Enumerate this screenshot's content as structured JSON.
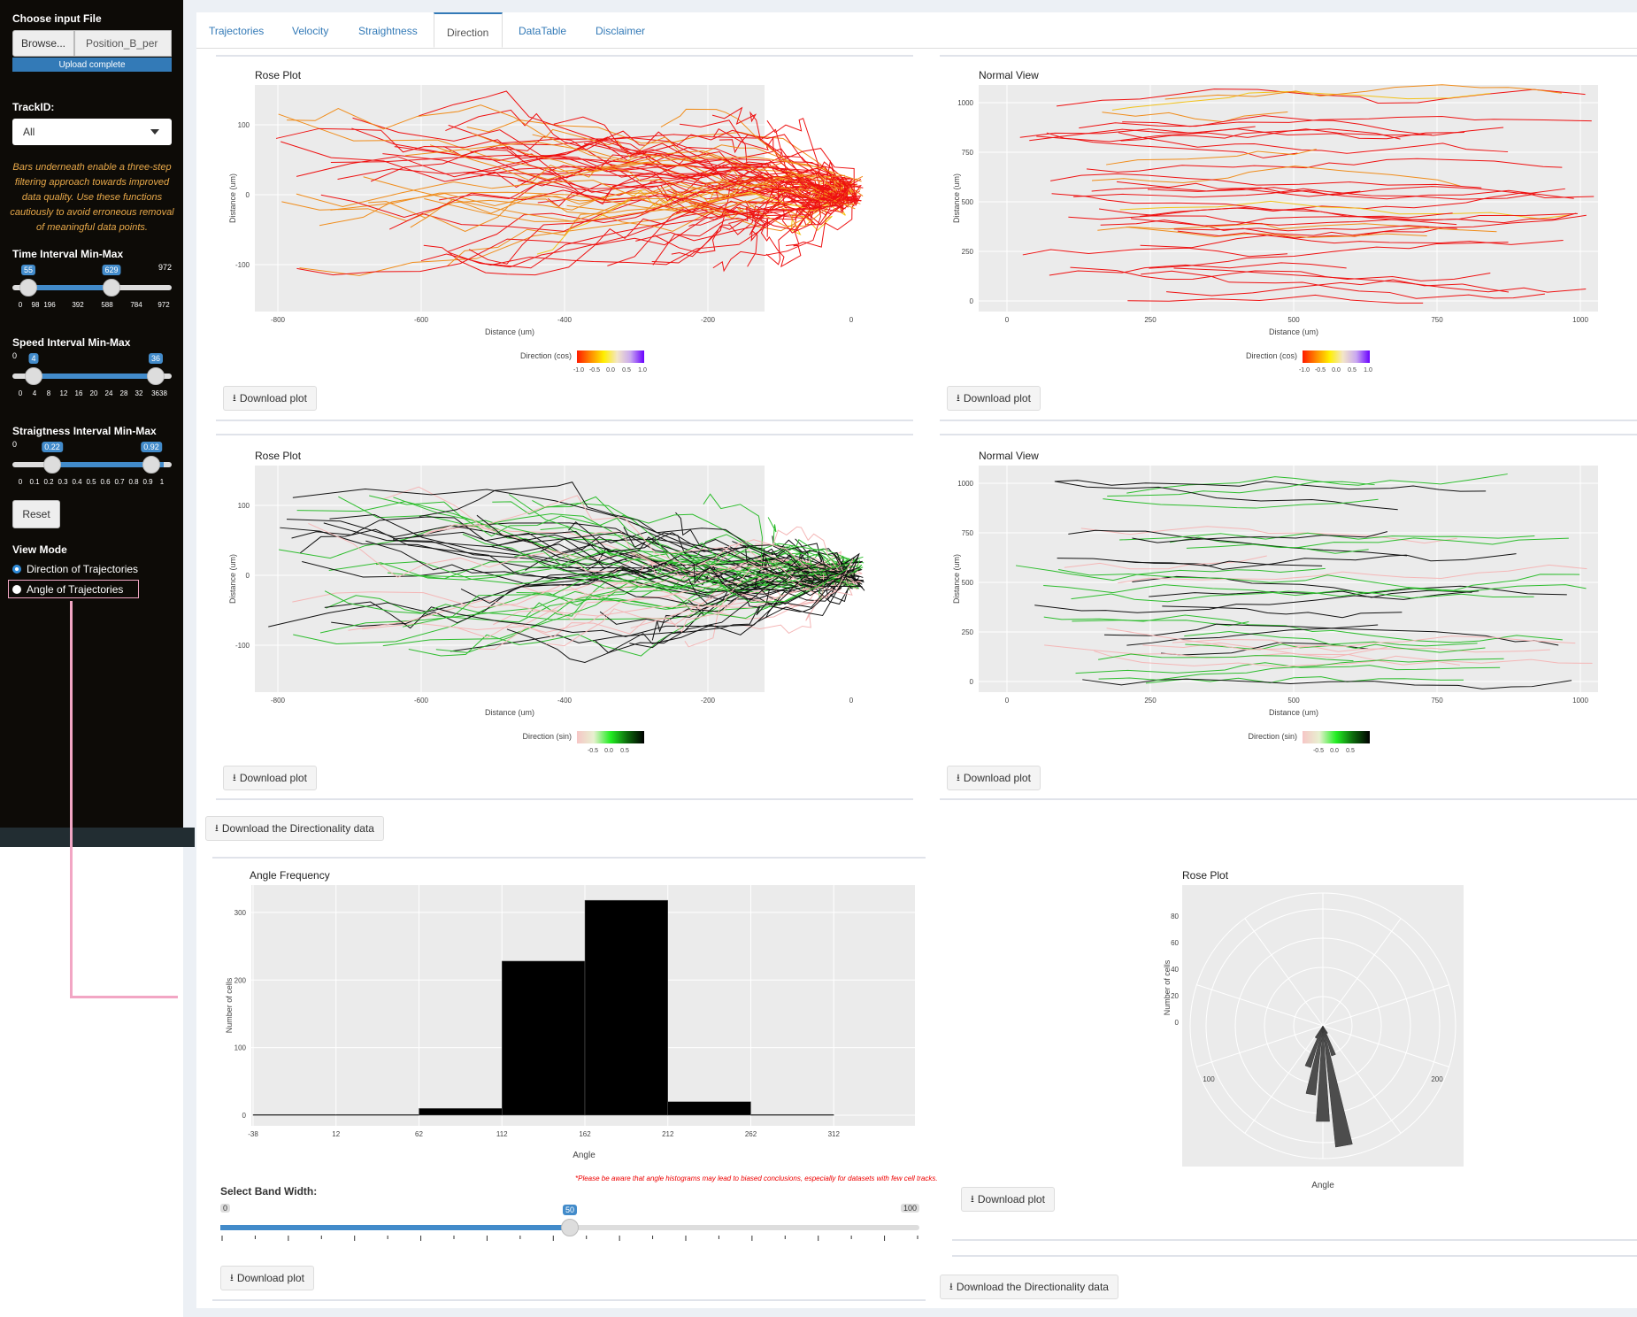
{
  "sidebar": {
    "file_label": "Choose input File",
    "browse_label": "Browse...",
    "file_name": "Position_B_per",
    "upload_status": "Upload complete",
    "trackid_label": "TrackID:",
    "trackid_value": "All",
    "note": "Bars underneath enable a three-step filtering approach towards improved data quality. Use these functions cautiously to avoid erroneous removal of meaningful data points.",
    "time_label": "Time Interval Min-Max",
    "time_min": "55",
    "time_max_val": "629",
    "time_range_max": "972",
    "time_ticks": [
      "0",
      "98",
      "196",
      "392",
      "588",
      "784",
      "972"
    ],
    "speed_label": "Speed Interval Min-Max",
    "speed_min": "4",
    "speed_max_val": "36",
    "speed_range_min": "0",
    "speed_ticks": [
      "0",
      "4",
      "8",
      "12",
      "16",
      "20",
      "24",
      "28",
      "32",
      "3638"
    ],
    "straight_label": "Straigtness Interval Min-Max",
    "straight_min": "0.22",
    "straight_max_val": "0.92",
    "straight_range_min": "0",
    "straight_ticks": [
      "0",
      "0.1",
      "0.2",
      "0.3",
      "0.4",
      "0.5",
      "0.6",
      "0.7",
      "0.8",
      "0.9",
      "1"
    ],
    "reset_label": "Reset",
    "viewmode_label": "View Mode",
    "viewmode_options": [
      "Direction of Trajectories",
      "Angle of Trajectories"
    ]
  },
  "tabs": [
    "Trajectories",
    "Velocity",
    "Straightness",
    "Direction",
    "DataTable",
    "Disclaimer"
  ],
  "plots": {
    "rose1_title": "Rose Plot",
    "normal1_title": "Normal View",
    "rose2_title": "Rose Plot",
    "normal2_title": "Normal View",
    "distance_label": "Distance (um)",
    "rose_x_ticks": [
      "-800",
      "-600",
      "-400",
      "-200",
      "0"
    ],
    "rose_y_ticks": [
      "100",
      "0",
      "-100"
    ],
    "normal_x_ticks": [
      "0",
      "250",
      "500",
      "750",
      "1000"
    ],
    "normal_y_ticks": [
      "1000",
      "750",
      "500",
      "250",
      "0"
    ],
    "legend_cos_title": "Direction (cos)",
    "legend_cos_ticks": [
      "-1.0",
      "-0.5",
      "0.0",
      "0.5",
      "1.0"
    ],
    "legend_sin_title": "Direction (sin)",
    "legend_sin_ticks": [
      "-0.5",
      "0.0",
      "0.5"
    ],
    "colors": {
      "red": "#ee1111",
      "orange": "#f08c1a",
      "green": "#2ebd2e",
      "black": "#111111",
      "pink": "#f4b6b6",
      "panel": "#ebebeb"
    }
  },
  "download_plot": "Download plot",
  "download_dir_data": "Download the Directionality data",
  "lower": {
    "hist_title": "Angle Frequency",
    "hist_xlabel": "Angle",
    "hist_ylabel": "Number of cells",
    "hist_x_ticks": [
      "-38",
      "12",
      "62",
      "112",
      "162",
      "212",
      "262",
      "312"
    ],
    "hist_y_ticks": [
      "300",
      "200",
      "100",
      "0"
    ],
    "warning": "*Please be aware that angle histograms may lead to biased conclusions, especially for datasets with few cell tracks.",
    "bandwidth_label": "Select Band Width:",
    "bandwidth_min": "0",
    "bandwidth_value": "50",
    "bandwidth_max": "100",
    "rose_title": "Rose Plot",
    "rose_xlabel": "Angle",
    "rose_ylabel": "Number of cells",
    "rose_r_ticks": [
      "80",
      "60",
      "40",
      "20",
      "0"
    ],
    "rose_angle_labels": [
      "100",
      "200"
    ]
  },
  "chart_data": [
    {
      "type": "bar",
      "title": "Angle Frequency",
      "xlabel": "Angle",
      "ylabel": "Number of cells",
      "categories": [
        "-13",
        "37",
        "87",
        "137",
        "187",
        "237",
        "287"
      ],
      "values": [
        1,
        1,
        10,
        228,
        318,
        20,
        1
      ],
      "ylim": [
        0,
        330
      ],
      "xlim": [
        -38,
        362
      ]
    },
    {
      "type": "bar",
      "title": "Rose Plot",
      "xlabel": "Angle",
      "ylabel": "Number of cells",
      "categories": [
        "150",
        "160",
        "170",
        "180",
        "190",
        "200",
        "210"
      ],
      "values": [
        5,
        18,
        70,
        55,
        40,
        25,
        8
      ],
      "ylim": [
        0,
        80
      ]
    }
  ]
}
